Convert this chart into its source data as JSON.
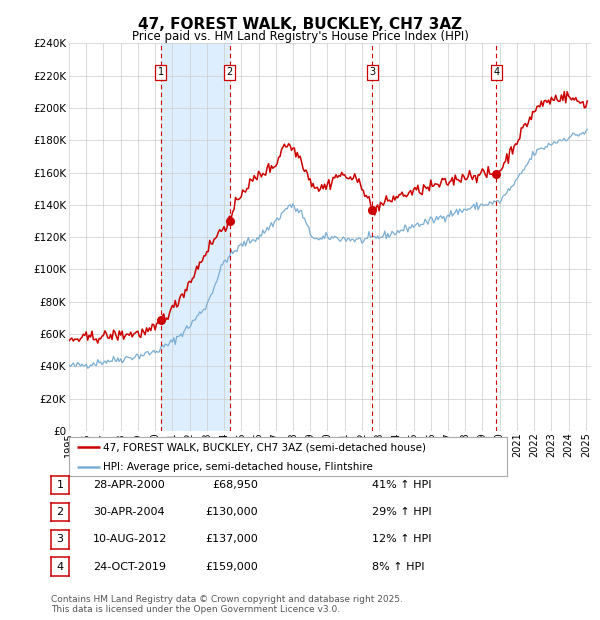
{
  "title": "47, FOREST WALK, BUCKLEY, CH7 3AZ",
  "subtitle": "Price paid vs. HM Land Registry's House Price Index (HPI)",
  "ylim": [
    0,
    240000
  ],
  "yticks": [
    0,
    20000,
    40000,
    60000,
    80000,
    100000,
    120000,
    140000,
    160000,
    180000,
    200000,
    220000,
    240000
  ],
  "x_start_year": 1995,
  "x_end_year": 2025,
  "sale_dates_decimal": [
    2000.32,
    2004.33,
    2012.61,
    2019.81
  ],
  "sale_prices": [
    68950,
    130000,
    137000,
    159000
  ],
  "sale_labels": [
    "1",
    "2",
    "3",
    "4"
  ],
  "sale_date_strings": [
    "28-APR-2000",
    "30-APR-2004",
    "10-AUG-2012",
    "24-OCT-2019"
  ],
  "sale_price_strings": [
    "£68,950",
    "£130,000",
    "£137,000",
    "£159,000"
  ],
  "sale_hpi_strings": [
    "41% ↑ HPI",
    "29% ↑ HPI",
    "12% ↑ HPI",
    "8% ↑ HPI"
  ],
  "hpi_color": "#7aaed4",
  "red_line_color": "#cc0000",
  "sale_dot_color": "#cc0000",
  "vline_color": "#cc0000",
  "shaded_color": "#ddeeff",
  "grid_color": "#cccccc",
  "background_color": "#ffffff",
  "legend_label_red": "47, FOREST WALK, BUCKLEY, CH7 3AZ (semi-detached house)",
  "legend_label_blue": "HPI: Average price, semi-detached house, Flintshire",
  "footnote1": "Contains HM Land Registry data © Crown copyright and database right 2025.",
  "footnote2": "This data is licensed under the Open Government Licence v3.0.",
  "hpi_anchors_x": [
    1995.0,
    1996.0,
    1997.0,
    1998.0,
    1999.0,
    2000.0,
    2001.0,
    2002.0,
    2003.0,
    2004.0,
    2005.0,
    2006.0,
    2007.0,
    2007.8,
    2008.5,
    2009.0,
    2009.5,
    2010.0,
    2011.0,
    2012.0,
    2013.0,
    2014.0,
    2015.0,
    2016.0,
    2017.0,
    2018.0,
    2019.0,
    2019.5,
    2020.0,
    2021.0,
    2022.0,
    2023.0,
    2024.0,
    2025.0
  ],
  "hpi_anchors_y": [
    40000,
    41000,
    43000,
    44500,
    46500,
    49000,
    55000,
    65000,
    78000,
    105000,
    115000,
    120000,
    130000,
    140000,
    135000,
    122000,
    118000,
    120000,
    119000,
    118000,
    120000,
    123000,
    127000,
    130000,
    134000,
    137000,
    140000,
    141000,
    142000,
    155000,
    172000,
    178000,
    182000,
    185000
  ],
  "red_anchors_x": [
    1995.0,
    1996.0,
    1997.0,
    1998.0,
    1999.5,
    2000.0,
    2000.32,
    2001.0,
    2002.0,
    2003.0,
    2004.0,
    2004.33,
    2005.0,
    2006.0,
    2007.0,
    2007.5,
    2008.0,
    2008.5,
    2009.0,
    2009.5,
    2010.0,
    2010.5,
    2011.0,
    2011.5,
    2012.0,
    2012.61,
    2013.0,
    2013.5,
    2014.0,
    2015.0,
    2016.0,
    2017.0,
    2018.0,
    2019.0,
    2019.81,
    2020.0,
    2021.0,
    2022.0,
    2022.5,
    2023.0,
    2023.5,
    2024.0,
    2024.5,
    2025.0
  ],
  "red_anchors_y": [
    56000,
    57500,
    58500,
    59500,
    61000,
    63000,
    68950,
    75000,
    92000,
    112000,
    127000,
    130000,
    148000,
    158000,
    165000,
    178000,
    175000,
    168000,
    155000,
    150000,
    152000,
    158000,
    158000,
    156000,
    153000,
    137000,
    139000,
    142000,
    145000,
    148000,
    151000,
    154000,
    158000,
    159000,
    159000,
    161000,
    180000,
    198000,
    203000,
    205000,
    207000,
    207000,
    204000,
    203000
  ],
  "noise_seed": 42,
  "hpi_noise_std": 1200,
  "red_noise_std": 1800
}
